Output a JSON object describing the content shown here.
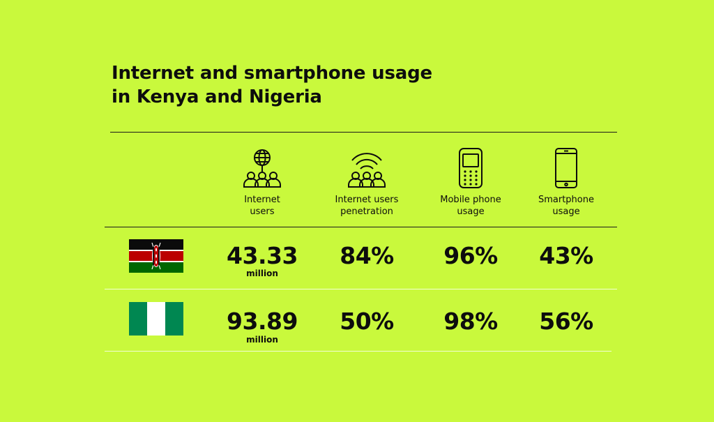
{
  "title_lines": [
    "Internet and smartphone usage",
    "in Kenya and Nigeria"
  ],
  "columns": [
    {
      "label_lines": [
        "Internet",
        "users"
      ],
      "icon": "globe-users-icon"
    },
    {
      "label_lines": [
        "Internet users",
        "penetration"
      ],
      "icon": "wifi-users-icon"
    },
    {
      "label_lines": [
        "Mobile phone",
        "usage"
      ],
      "icon": "feature-phone-icon"
    },
    {
      "label_lines": [
        "Smartphone",
        "usage"
      ],
      "icon": "smartphone-icon"
    }
  ],
  "rows": [
    {
      "flag": "kenya-flag",
      "internet_users": "43.33",
      "internet_users_unit": "million",
      "penetration": "84%",
      "mobile_phone": "96%",
      "smartphone": "43%"
    },
    {
      "flag": "nigeria-flag",
      "internet_users": "93.89",
      "internet_users_unit": "million",
      "penetration": "50%",
      "mobile_phone": "98%",
      "smartphone": "56%"
    }
  ],
  "colors": {
    "background": "#c9f93c",
    "text": "#0d0d0d",
    "kenya_black": "#0b0b0b",
    "kenya_red": "#bb0000",
    "kenya_green": "#006600",
    "nigeria_green": "#008751"
  },
  "chart_data": {
    "type": "table",
    "columns": [
      "Internet users",
      "Internet users penetration",
      "Mobile phone usage",
      "Smartphone usage"
    ],
    "rows": [
      {
        "country_flag": "Kenya",
        "values": [
          "43.33 million",
          "84%",
          "96%",
          "43%"
        ]
      },
      {
        "country_flag": "Nigeria",
        "values": [
          "93.89 million",
          "50%",
          "98%",
          "56%"
        ]
      }
    ]
  }
}
